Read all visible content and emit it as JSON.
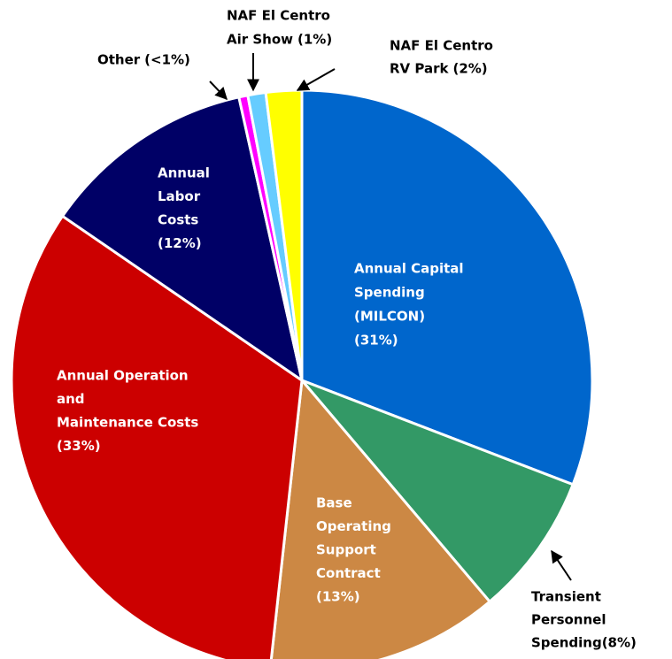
{
  "chart_data": {
    "type": "pie",
    "categories": [
      [
        "Annual Capital",
        "Spending",
        "(MILCON)"
      ],
      [
        "Transient",
        "Personnel",
        "Spending"
      ],
      [
        "Base",
        "Operating",
        "Support",
        "Contract"
      ],
      [
        "Annual Operation",
        "and",
        "Maintenance Costs"
      ],
      [
        "Annual",
        "Labor",
        "Costs"
      ],
      [
        "Other"
      ],
      [
        "NAF El Centro",
        "Air Show"
      ],
      [
        "NAF El Centro",
        "RV Park"
      ]
    ],
    "values": [
      31,
      8,
      13,
      33,
      12,
      0.5,
      1,
      2
    ],
    "value_labels": [
      "(31%)",
      "(8%)",
      "(13%)",
      "(33%)",
      "(12%)",
      "(<1%)",
      "(1%)",
      "(2%)"
    ],
    "colors": [
      "#0066cc",
      "#339966",
      "#cc8844",
      "#cc0000",
      "#000066",
      "#ff00ff",
      "#66ccff",
      "#ffff00"
    ]
  }
}
